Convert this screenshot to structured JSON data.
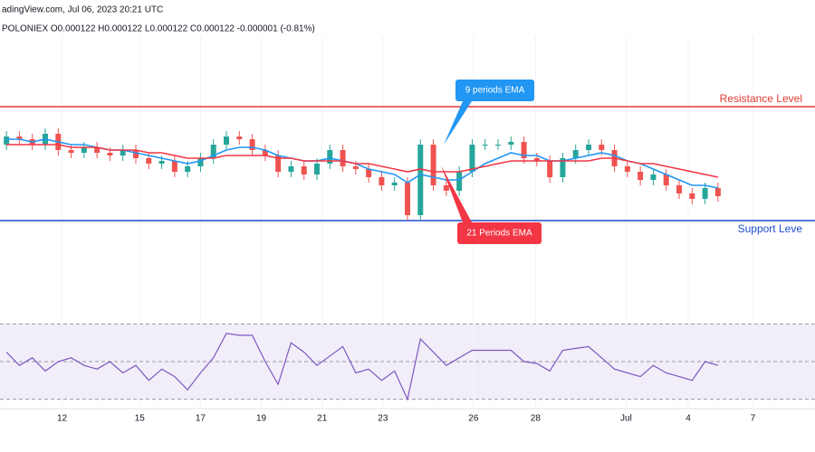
{
  "header": {
    "source": "adingView.com, Jul 06, 2023 20:21 UTC",
    "ohlc": "POLONIEX  O0.000122  H0.000122  L0.000122  C0.000122  -0.000001 (-0.81%)"
  },
  "chart_data": {
    "type": "candlestick",
    "x": [
      0,
      1,
      2,
      3,
      4,
      5,
      6,
      7,
      8,
      9,
      10,
      11,
      12,
      13,
      14,
      15,
      16,
      17,
      18,
      19,
      20,
      21,
      22,
      23,
      24,
      25,
      26,
      27,
      28,
      29,
      30,
      31,
      32,
      33,
      34,
      35,
      36,
      37,
      38,
      39,
      40,
      41,
      42,
      43,
      44,
      45,
      46,
      47,
      48,
      49,
      50,
      51,
      52,
      53,
      54,
      55
    ],
    "open": [
      60,
      63,
      62,
      60,
      64,
      58,
      57,
      59,
      57,
      56,
      58,
      55,
      53,
      54,
      50,
      52,
      55,
      60,
      63,
      62,
      58,
      56,
      50,
      52,
      49,
      53,
      58,
      52,
      51,
      48,
      45,
      46,
      34,
      60,
      45,
      43,
      50,
      60,
      60,
      60,
      61,
      55,
      54,
      48,
      55,
      58,
      60,
      58,
      52,
      50,
      47,
      49,
      45,
      42,
      40,
      44
    ],
    "high": [
      65,
      65,
      64,
      66,
      66,
      60,
      61,
      61,
      59,
      60,
      60,
      57,
      56,
      56,
      54,
      57,
      62,
      65,
      65,
      64,
      60,
      58,
      54,
      54,
      55,
      60,
      60,
      54,
      53,
      50,
      48,
      48,
      62,
      62,
      47,
      52,
      62,
      62,
      62,
      63,
      63,
      57,
      56,
      57,
      60,
      62,
      62,
      60,
      54,
      52,
      51,
      51,
      47,
      44,
      46,
      46
    ],
    "low": [
      58,
      60,
      58,
      58,
      56,
      55,
      55,
      55,
      54,
      54,
      53,
      51,
      51,
      48,
      48,
      50,
      53,
      58,
      60,
      56,
      54,
      48,
      48,
      47,
      47,
      51,
      50,
      49,
      46,
      43,
      43,
      32,
      32,
      43,
      41,
      41,
      48,
      58,
      58,
      58,
      53,
      52,
      46,
      46,
      53,
      56,
      56,
      50,
      48,
      45,
      45,
      43,
      40,
      38,
      38,
      39
    ],
    "close": [
      63,
      62,
      60,
      64,
      58,
      57,
      59,
      57,
      56,
      58,
      55,
      53,
      54,
      50,
      52,
      55,
      60,
      63,
      62,
      58,
      56,
      50,
      52,
      49,
      53,
      58,
      52,
      51,
      48,
      45,
      46,
      34,
      60,
      45,
      43,
      50,
      60,
      60,
      60,
      61,
      55,
      54,
      48,
      55,
      58,
      60,
      58,
      52,
      50,
      47,
      49,
      45,
      42,
      40,
      44,
      41
    ],
    "up_color": "#26a69a",
    "down_color": "#ef5350",
    "xlim": [
      -0.5,
      62.5
    ],
    "ylim": [
      0,
      100
    ],
    "xticks": [
      {
        "value": 4.3,
        "label": "12"
      },
      {
        "value": 10.3,
        "label": "15"
      },
      {
        "value": 15,
        "label": "17"
      },
      {
        "value": 19.7,
        "label": "19"
      },
      {
        "value": 24.4,
        "label": "21"
      },
      {
        "value": 29.1,
        "label": "23"
      },
      {
        "value": 36.1,
        "label": "26"
      },
      {
        "value": 40.9,
        "label": "28"
      },
      {
        "value": 47.9,
        "label": "Jul"
      },
      {
        "value": 52.7,
        "label": "4"
      },
      {
        "value": 57.7,
        "label": "7"
      }
    ],
    "series": [
      {
        "name": "9 periods EMA",
        "color": "#2196f3",
        "values": [
          62,
          62,
          61,
          62,
          61,
          60,
          60,
          59,
          58,
          58,
          57,
          56,
          55,
          54,
          53,
          54,
          56,
          58,
          59,
          59,
          58,
          56,
          55,
          54,
          54,
          55,
          54,
          53,
          51,
          50,
          49,
          46,
          49,
          48,
          47,
          47,
          50,
          53,
          55,
          57,
          56,
          56,
          54,
          54,
          55,
          56,
          57,
          56,
          54,
          53,
          51,
          49,
          47,
          45,
          45,
          44
        ]
      },
      {
        "name": "21 Periods EMA",
        "color": "#f23645",
        "values": [
          60,
          60,
          60,
          60,
          60,
          59,
          59,
          59,
          58,
          58,
          58,
          57,
          57,
          56,
          55,
          55,
          55,
          56,
          56,
          56,
          56,
          55,
          55,
          54,
          54,
          54,
          54,
          53,
          53,
          52,
          51,
          50,
          51,
          50,
          50,
          50,
          51,
          52,
          53,
          54,
          54,
          54,
          54,
          54,
          54,
          54,
          55,
          55,
          54,
          53,
          53,
          52,
          51,
          50,
          49,
          48
        ]
      }
    ],
    "levels": [
      {
        "name": "Resistance Level",
        "value": 74,
        "color": "#e53935"
      },
      {
        "name": "Support Leve",
        "value": 32,
        "color": "#1e4fd0"
      }
    ],
    "rsi": {
      "color": "#7e57c2",
      "ylim": [
        25,
        75
      ],
      "yticks": [
        30,
        50,
        70
      ],
      "values": [
        55,
        48,
        52,
        45,
        50,
        52,
        48,
        46,
        50,
        44,
        48,
        40,
        46,
        42,
        35,
        44,
        52,
        65,
        64,
        64,
        50,
        38,
        60,
        55,
        48,
        53,
        58,
        44,
        46,
        40,
        45,
        30,
        62,
        55,
        48,
        52,
        56,
        56,
        56,
        56,
        50,
        49,
        45,
        56,
        57,
        58,
        52,
        46,
        44,
        42,
        48,
        44,
        42,
        40,
        50,
        48
      ]
    }
  }
}
